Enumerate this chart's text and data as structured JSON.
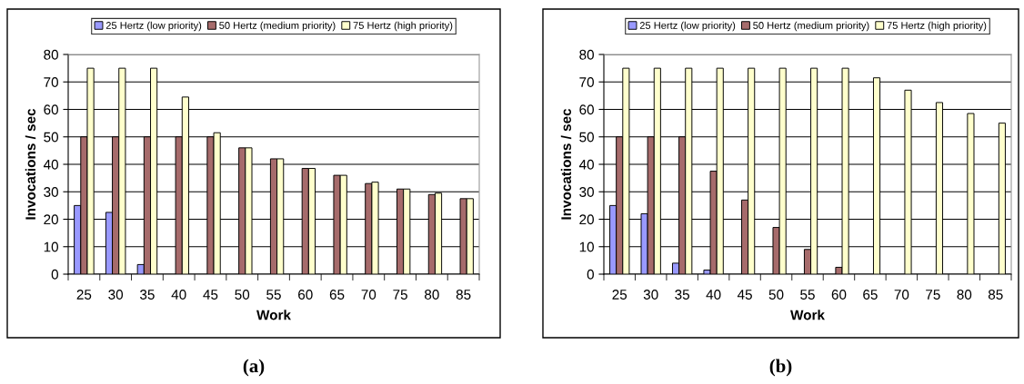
{
  "chart_data": [
    {
      "type": "bar",
      "title": "(a)",
      "xlabel": "Work",
      "ylabel": "Invocations / sec",
      "categories": [
        "25",
        "30",
        "35",
        "40",
        "45",
        "50",
        "55",
        "60",
        "65",
        "70",
        "75",
        "80",
        "85"
      ],
      "ylim": [
        0,
        80
      ],
      "yticks": [
        0,
        10,
        20,
        30,
        40,
        50,
        60,
        70,
        80
      ],
      "grid": "y",
      "legend": "top",
      "series": [
        {
          "name": "25 Hertz (low priority)",
          "color": "#9999ff",
          "values": [
            25,
            22.5,
            3.5,
            null,
            null,
            null,
            null,
            null,
            null,
            null,
            null,
            null,
            null
          ]
        },
        {
          "name": "50 Hertz (medium priority)",
          "color": "#a66b6b",
          "values": [
            50,
            50,
            50,
            50,
            50,
            46,
            42,
            38.5,
            36,
            33,
            31,
            29,
            27.5
          ]
        },
        {
          "name": "75 Hertz (high priority)",
          "color": "#ffffcc",
          "values": [
            75,
            75,
            75,
            64.5,
            51.5,
            46,
            42,
            38.5,
            36,
            33.5,
            31,
            29.5,
            27.5
          ]
        }
      ]
    },
    {
      "type": "bar",
      "title": "(b)",
      "xlabel": "Work",
      "ylabel": "Invocations / sec",
      "categories": [
        "25",
        "30",
        "35",
        "40",
        "45",
        "50",
        "55",
        "60",
        "65",
        "70",
        "75",
        "80",
        "85"
      ],
      "ylim": [
        0,
        80
      ],
      "yticks": [
        0,
        10,
        20,
        30,
        40,
        50,
        60,
        70,
        80
      ],
      "grid": "y",
      "legend": "top",
      "series": [
        {
          "name": "25 Hertz (low priority)",
          "color": "#9999ff",
          "values": [
            25,
            22,
            4,
            1.5,
            null,
            null,
            null,
            null,
            null,
            null,
            null,
            null,
            null
          ]
        },
        {
          "name": "50 Hertz (medium priority)",
          "color": "#a66b6b",
          "values": [
            50,
            50,
            50,
            37.5,
            27,
            17,
            9,
            2.5,
            null,
            null,
            null,
            null,
            null
          ]
        },
        {
          "name": "75 Hertz (high priority)",
          "color": "#ffffcc",
          "values": [
            75,
            75,
            75,
            75,
            75,
            75,
            75,
            75,
            71.5,
            67,
            62.5,
            58.5,
            55
          ]
        }
      ]
    }
  ]
}
